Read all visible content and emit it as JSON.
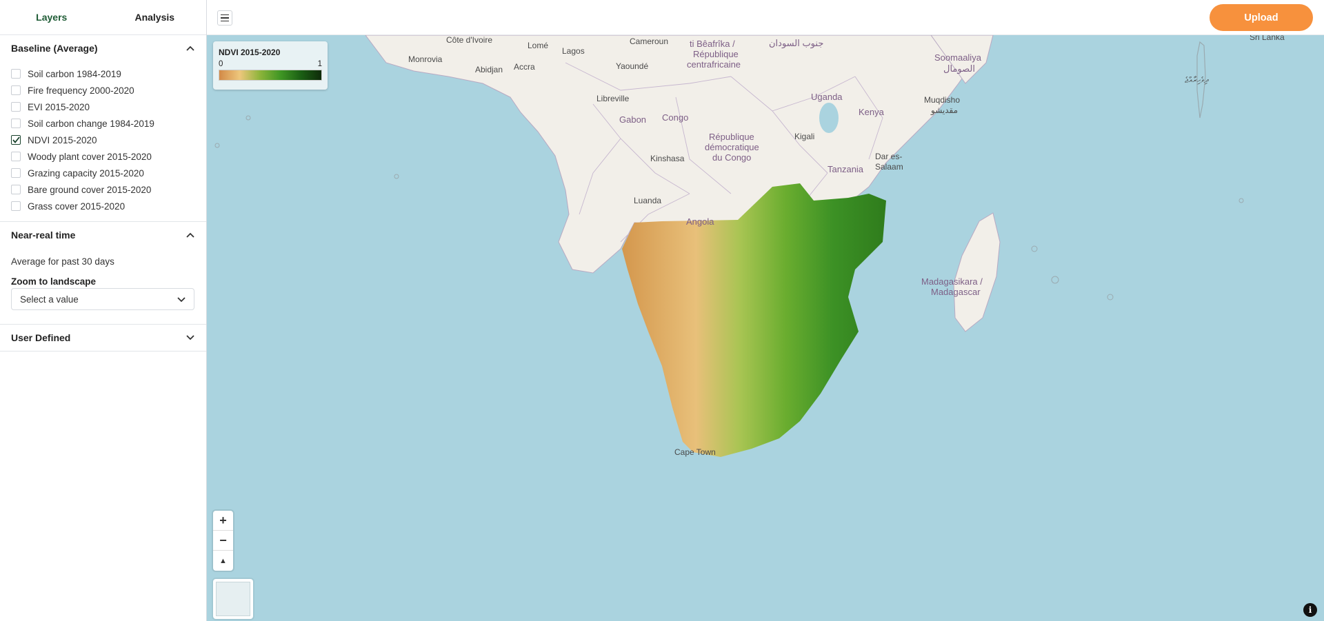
{
  "tabs": [
    {
      "label": "Layers",
      "active": true
    },
    {
      "label": "Analysis",
      "active": false
    }
  ],
  "baseline": {
    "title": "Baseline (Average)",
    "layers": [
      {
        "label": "Soil carbon 1984-2019",
        "checked": false
      },
      {
        "label": "Fire frequency 2000-2020",
        "checked": false
      },
      {
        "label": "EVI 2015-2020",
        "checked": false
      },
      {
        "label": "Soil carbon change 1984-2019",
        "checked": false
      },
      {
        "label": "NDVI 2015-2020",
        "checked": true
      },
      {
        "label": "Woody plant cover 2015-2020",
        "checked": false
      },
      {
        "label": "Grazing capacity 2015-2020",
        "checked": false
      },
      {
        "label": "Bare ground cover 2015-2020",
        "checked": false
      },
      {
        "label": "Grass cover 2015-2020",
        "checked": false
      }
    ]
  },
  "near_real_time": {
    "title": "Near-real time",
    "description": "Average for past 30 days",
    "zoom_label": "Zoom to landscape",
    "select_placeholder": "Select a value"
  },
  "user_defined": {
    "title": "User Defined"
  },
  "topbar": {
    "upload_label": "Upload"
  },
  "legend": {
    "title": "NDVI 2015-2020",
    "min": "0",
    "max": "1"
  },
  "zoom": {
    "in": "+",
    "out": "−",
    "compass": "▲"
  },
  "info": "i",
  "map_labels": {
    "cote_divoire": "Côte d'Ivoire",
    "cameroun": "Cameroun",
    "centrafrique_1": "ti Bêafrîka /",
    "centrafrique_2": "République",
    "centrafrique_3": "centrafricaine",
    "south_sudan": "جنوب السودان",
    "somalia_1": "Soomaaliya",
    "somalia_2": "الصومال",
    "sri_lanka": "Sri Lanka",
    "monrovia": "Monrovia",
    "lome": "Lomé",
    "lagos": "Lagos",
    "abidjan": "Abidjan",
    "accra": "Accra",
    "yaounde": "Yaoundé",
    "maldives": "ދިވެހިރާއްޖެ",
    "uganda": "Uganda",
    "kenya": "Kenya",
    "libreville": "Libreville",
    "gabon": "Gabon",
    "congo": "Congo",
    "mogadishu_1": "Muqdisho",
    "mogadishu_2": "مقديشو",
    "drc_1": "République",
    "drc_2": "démocratique",
    "drc_3": "du Congo",
    "kigali": "Kigali",
    "kinshasa": "Kinshasa",
    "dar_1": "Dar es-",
    "dar_2": "Salaam",
    "tanzania": "Tanzania",
    "luanda": "Luanda",
    "angola": "Angola",
    "madagascar_1": "Madagasikara /",
    "madagascar_2": "Madagascar",
    "cape_town": "Cape Town"
  }
}
